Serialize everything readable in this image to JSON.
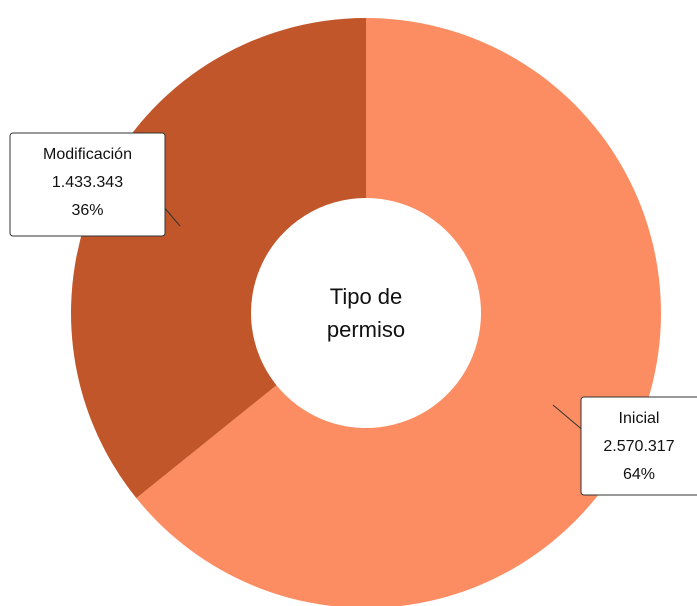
{
  "chart_data": {
    "type": "donut",
    "center_label": "Tipo de permiso",
    "categories": [
      "Inicial",
      "Modificación"
    ],
    "values": [
      2570317,
      1433343
    ],
    "value_labels": [
      "2.570.317",
      "1.433.343"
    ],
    "percents": [
      64,
      36
    ],
    "percent_labels": [
      "64%",
      "36%"
    ],
    "colors": [
      "#fc8d62",
      "#c2562b"
    ]
  }
}
